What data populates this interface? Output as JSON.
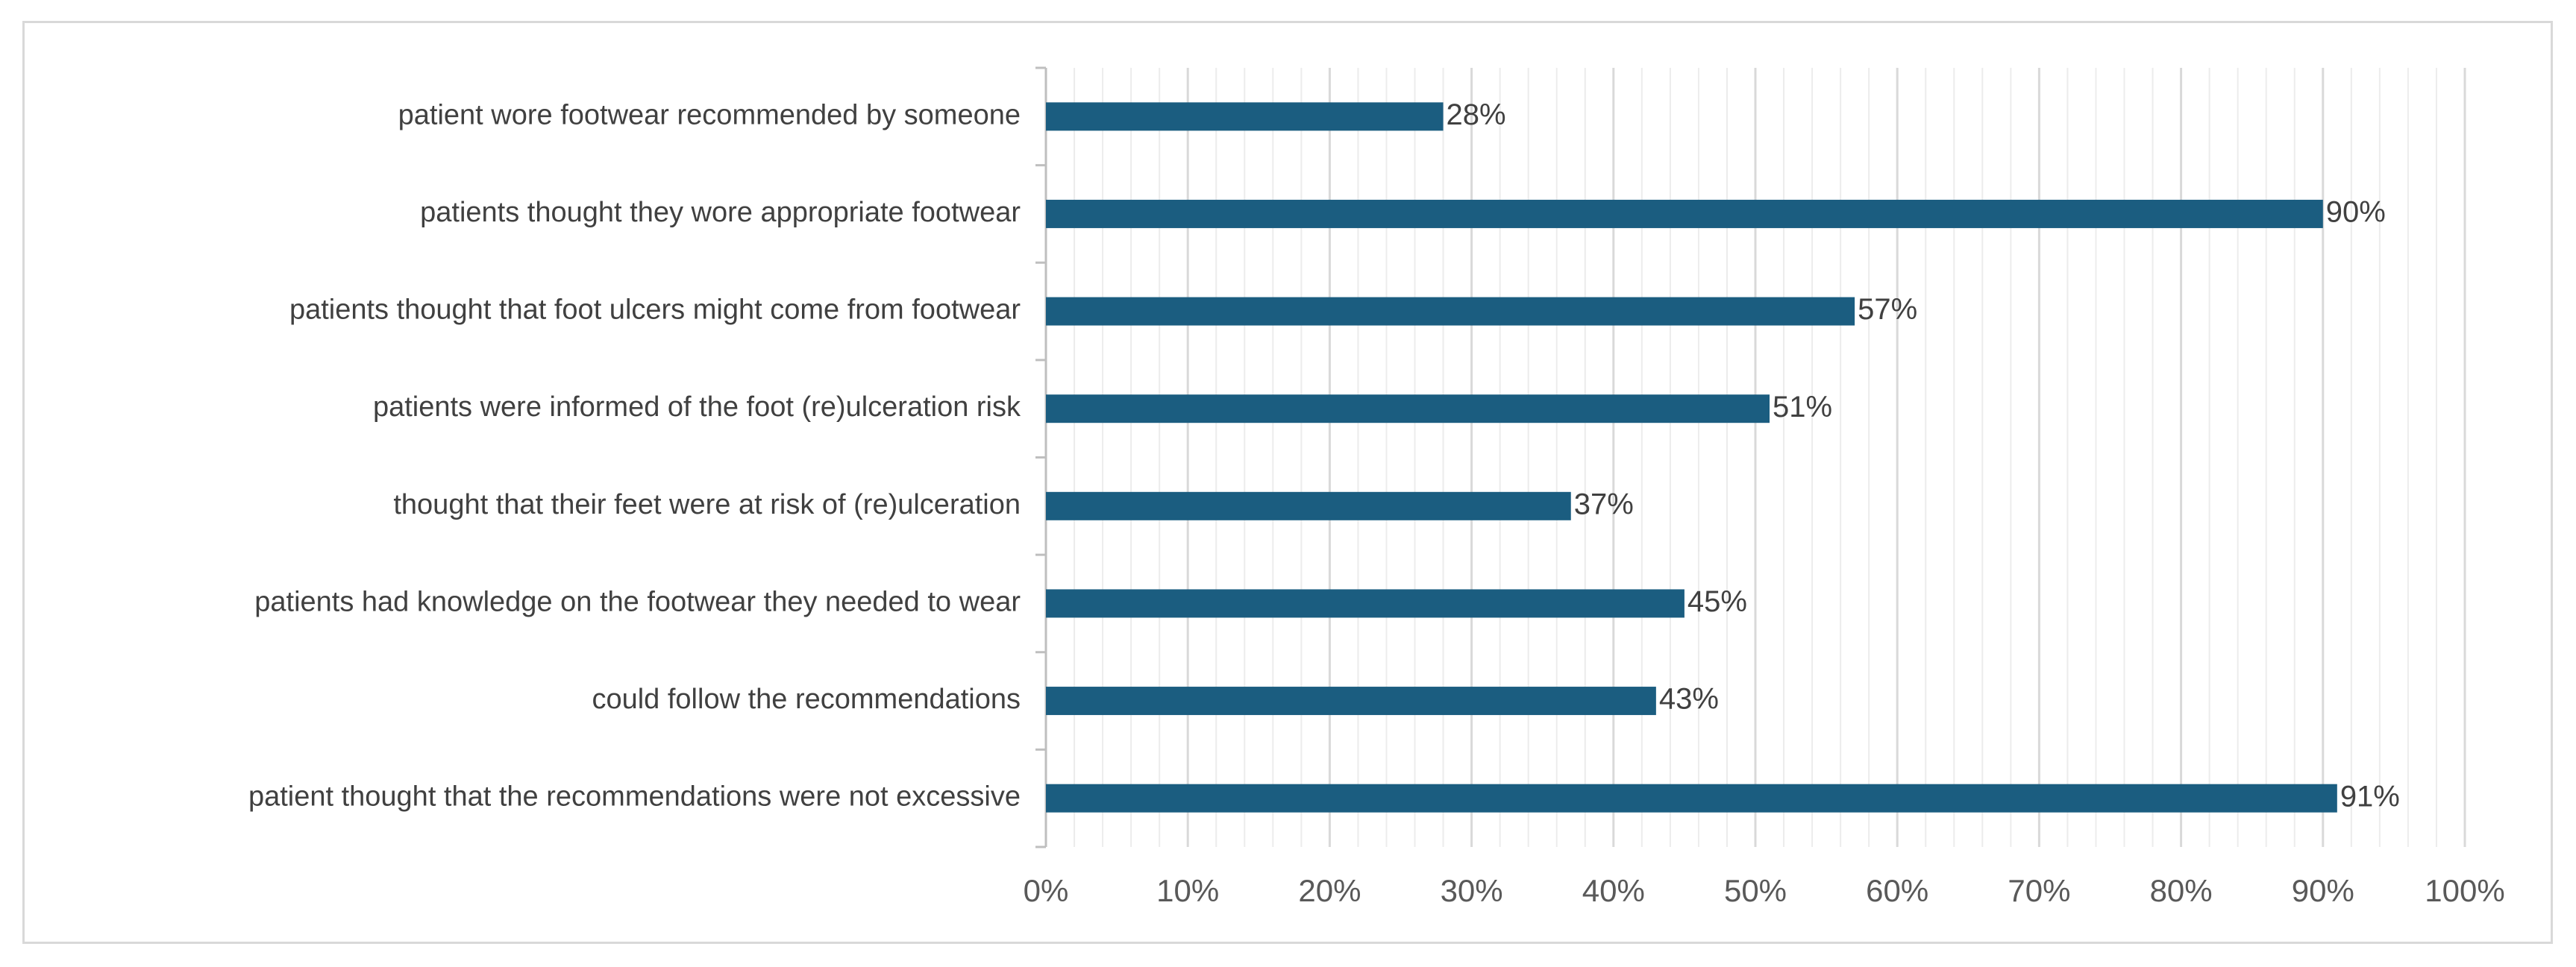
{
  "chart_data": {
    "type": "bar",
    "orientation": "horizontal",
    "categories": [
      "patient wore footwear recommended by someone",
      "patients thought they wore appropriate footwear",
      "patients thought that foot ulcers might come from footwear",
      "patients were informed of the foot (re)ulceration risk",
      "thought that their feet were at risk of (re)ulceration",
      "patients had knowledge on the footwear they needed to wear",
      "could follow the recommendations",
      "patient thought that the recommendations were not excessive"
    ],
    "values": [
      28,
      90,
      57,
      51,
      37,
      45,
      43,
      91
    ],
    "data_labels": [
      "28%",
      "90%",
      "57%",
      "51%",
      "37%",
      "45%",
      "43%",
      "91%"
    ],
    "x_ticks": [
      "0%",
      "10%",
      "20%",
      "30%",
      "40%",
      "50%",
      "60%",
      "70%",
      "80%",
      "90%",
      "100%"
    ],
    "xlim": [
      0,
      100
    ],
    "minor_step": 2,
    "grid": true,
    "legend": "none",
    "title": "",
    "xlabel": "",
    "ylabel": "",
    "colors": {
      "bar": "#1b5d80",
      "major_grid": "#d9d9d9",
      "minor_grid": "#ececec",
      "axis": "#bfbfbf"
    }
  }
}
